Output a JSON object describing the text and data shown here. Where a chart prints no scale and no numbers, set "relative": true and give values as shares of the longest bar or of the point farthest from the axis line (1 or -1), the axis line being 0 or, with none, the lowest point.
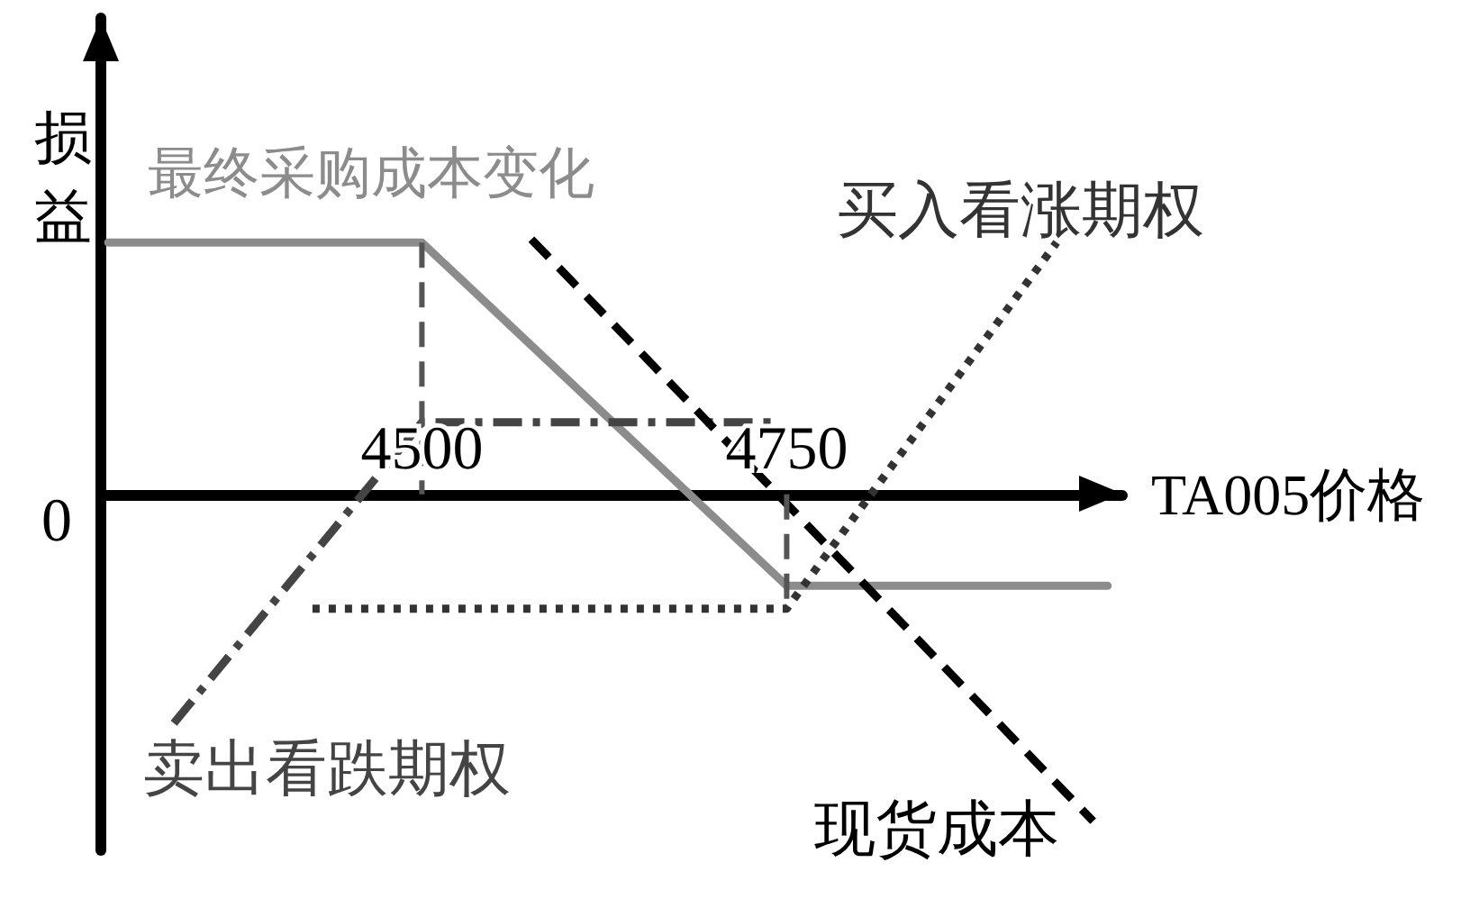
{
  "chart_data": {
    "type": "line",
    "relative": true,
    "xlabel": "TA005价格",
    "ylabel": "损益",
    "xlim": [
      4280,
      4980
    ],
    "xticks": [
      4500,
      4750
    ],
    "annotations": [
      "0"
    ],
    "legend": false,
    "grid": false,
    "marker": "none",
    "series": [
      {
        "name": "最终采购成本变化",
        "color": "#8c8c8c",
        "line_style": "solid",
        "x": [
          4285,
          4500,
          4750,
          4970
        ],
        "values": [
          0.77,
          0.77,
          -0.28,
          -0.28
        ]
      },
      {
        "name": "买入看涨期权",
        "color": "#333333",
        "line_style": "dotted",
        "x": [
          4425,
          4750,
          4935
        ],
        "values": [
          -0.35,
          -0.35,
          0.77
        ]
      },
      {
        "name": "卖出看跌期权",
        "color": "#444444",
        "line_style": "dashdot",
        "x": [
          4330,
          4500,
          4740
        ],
        "values": [
          -0.7,
          0.22,
          0.22
        ]
      },
      {
        "name": "现货成本",
        "color": "#000000",
        "line_style": "dashed",
        "x": [
          4575,
          4960
        ],
        "values": [
          0.78,
          -1
        ]
      },
      {
        "color": "#555555",
        "line_style": "dashed",
        "x": [
          4500,
          4500
        ],
        "values": [
          0.77,
          0
        ]
      },
      {
        "color": "#555555",
        "line_style": "dashed",
        "x": [
          4750,
          4750
        ],
        "values": [
          0,
          -0.35
        ]
      }
    ]
  }
}
